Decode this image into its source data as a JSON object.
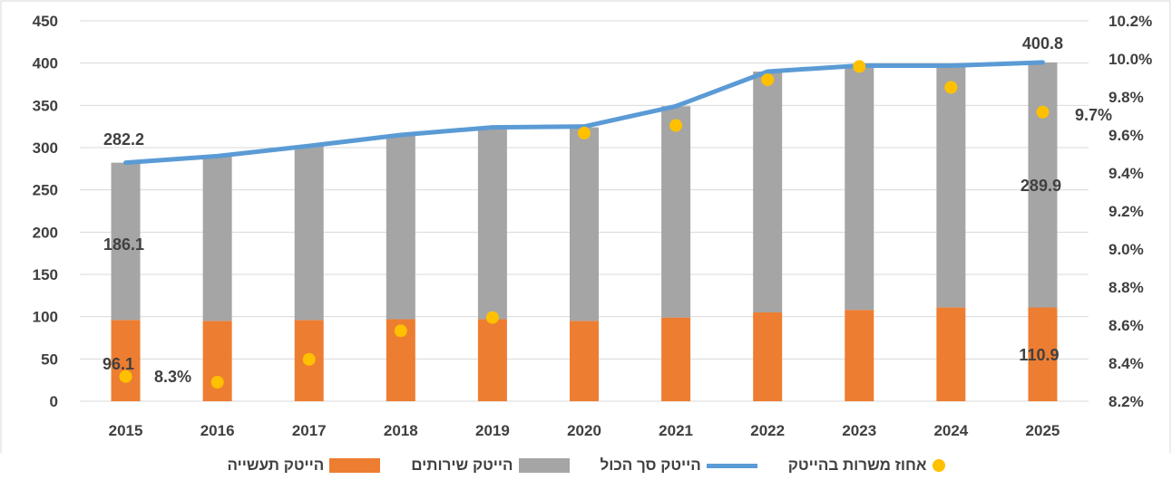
{
  "chart_data": {
    "type": "bar",
    "stacked": true,
    "categories": [
      "2015",
      "2016",
      "2017",
      "2018",
      "2019",
      "2020",
      "2021",
      "2022",
      "2023",
      "2024",
      "2025"
    ],
    "series": [
      {
        "name": "הייטק תעשייה",
        "kind": "bar",
        "axis": "left",
        "color": "#ed7d31",
        "values": [
          96.1,
          95,
          96,
          97,
          97,
          95,
          99,
          105,
          108,
          111,
          110.9
        ]
      },
      {
        "name": "הייטק שירותים",
        "kind": "bar",
        "axis": "left",
        "color": "#a5a5a5",
        "values": [
          186.1,
          195,
          206,
          218,
          227,
          229,
          250,
          285,
          289,
          286,
          289.9
        ]
      },
      {
        "name": "הייטק סך הכול",
        "kind": "line",
        "axis": "left",
        "color": "#5b9bd5",
        "values": [
          282.2,
          290,
          302,
          315,
          324,
          325,
          349,
          390,
          397,
          397,
          400.8
        ]
      },
      {
        "name": "אחוז משרות בהייטק",
        "kind": "scatter",
        "axis": "right",
        "color": "#ffc000",
        "values": [
          8.33,
          8.3,
          8.42,
          8.57,
          8.64,
          9.61,
          9.65,
          9.89,
          9.96,
          9.85,
          9.72
        ]
      }
    ],
    "y_left": {
      "min": 0,
      "max": 450,
      "step": 50,
      "ticks": [
        "0",
        "50",
        "100",
        "150",
        "200",
        "250",
        "300",
        "350",
        "400",
        "450"
      ]
    },
    "y_right": {
      "min": 8.2,
      "max": 10.2,
      "step": 0.2,
      "ticks": [
        "8.2%",
        "8.4%",
        "8.6%",
        "8.8%",
        "9.0%",
        "9.2%",
        "9.4%",
        "9.6%",
        "9.8%",
        "10.0%",
        "10.2%"
      ]
    },
    "data_labels": [
      {
        "text": "282.2",
        "series": 2,
        "index": 0
      },
      {
        "text": "186.1",
        "series": 1,
        "index": 0
      },
      {
        "text": "96.1",
        "series": 0,
        "index": 0
      },
      {
        "text": "8.3%",
        "series": 3,
        "index": 0
      },
      {
        "text": "400.8",
        "series": 2,
        "index": 10
      },
      {
        "text": "289.9",
        "series": 1,
        "index": 10
      },
      {
        "text": "110.9",
        "series": 0,
        "index": 10
      },
      {
        "text": "9.7%",
        "series": 3,
        "index": 10
      }
    ],
    "grid": true,
    "legend": "bottom"
  },
  "legend_items": [
    {
      "label": "אחוז משרות בהייטק",
      "shape": "dot",
      "color": "#ffc000"
    },
    {
      "label": "הייטק סך הכול",
      "shape": "line",
      "color": "#5b9bd5"
    },
    {
      "label": "הייטק שירותים",
      "shape": "box",
      "color": "#a5a5a5"
    },
    {
      "label": "הייטק תעשייה",
      "shape": "box",
      "color": "#ed7d31"
    }
  ]
}
